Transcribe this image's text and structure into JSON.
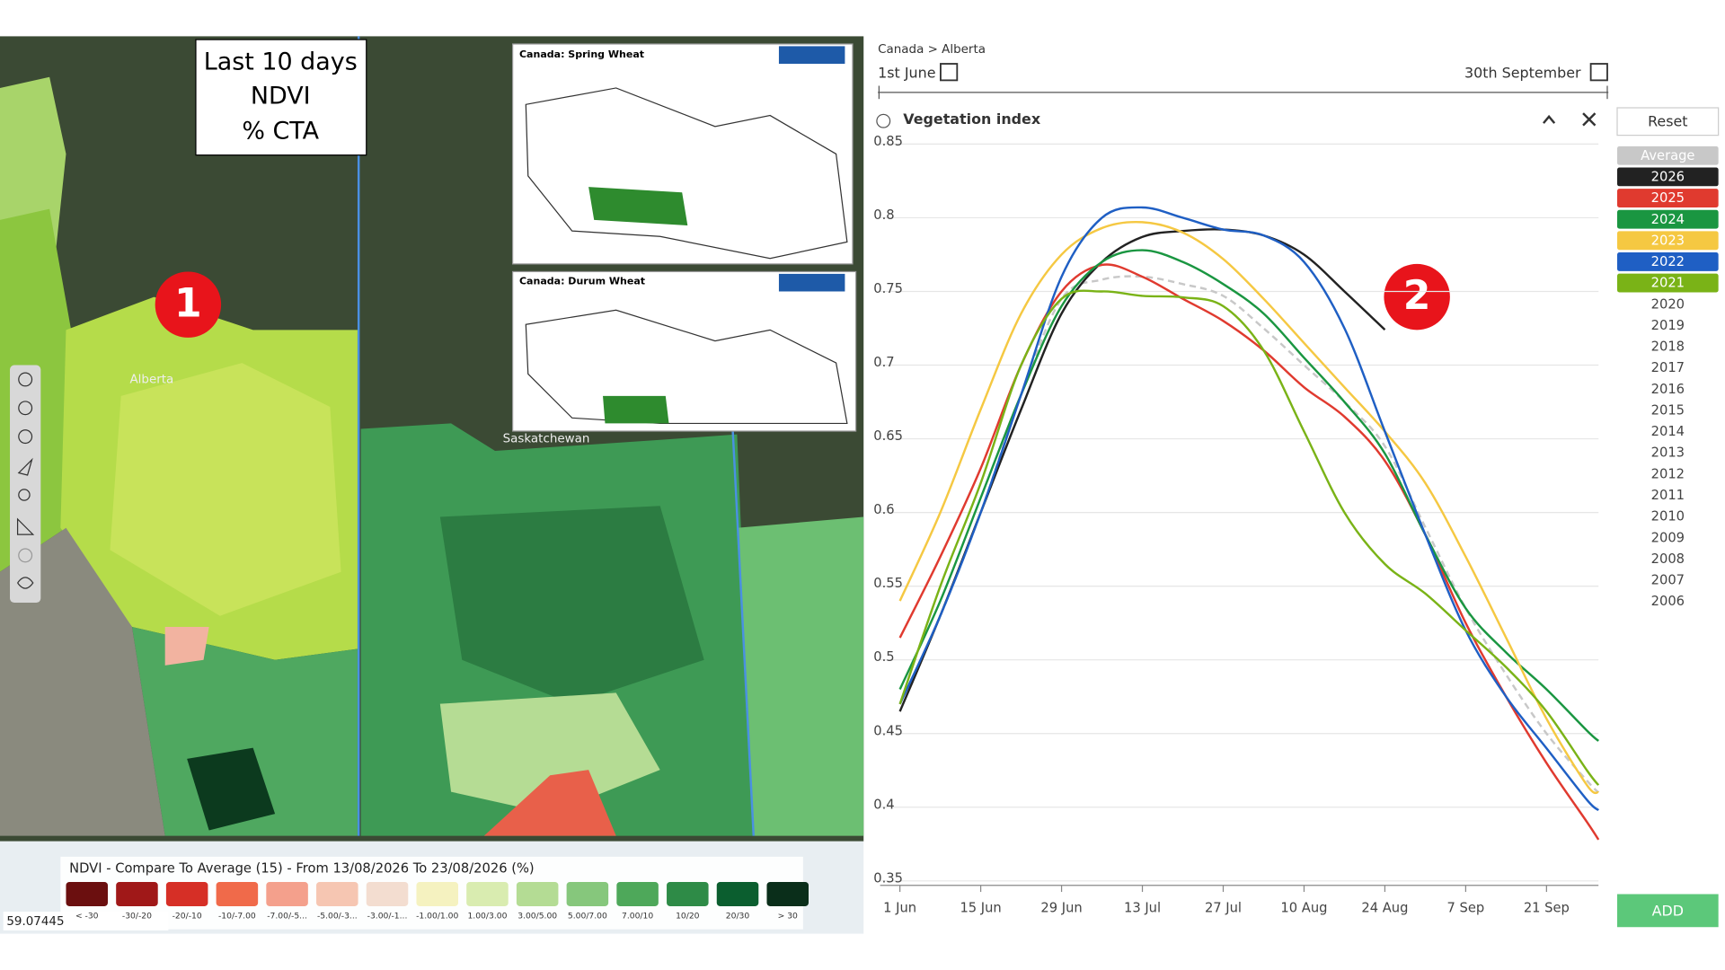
{
  "map": {
    "overlay": [
      "Last 10 days",
      "NDVI",
      "% CTA"
    ],
    "places": [
      "Alberta",
      "Saskatchewan"
    ],
    "insets": [
      "Canada:  Spring Wheat",
      "Canada:  Durum Wheat"
    ],
    "annotation": "1",
    "coordinate": "59.07445",
    "legend": {
      "title": "NDVI - Compare To Average (15) - From 13/08/2026 To 23/08/2026 (%)",
      "labels": [
        "< -30",
        "-30/-20",
        "-20/-10",
        "-10/-7.00",
        "-7.00/-5...",
        "-5.00/-3...",
        "-3.00/-1...",
        "-1.00/1.00",
        "1.00/3.00",
        "3.00/5.00",
        "5.00/7.00",
        "7.00/10",
        "10/20",
        "20/30",
        "> 30"
      ],
      "colors": [
        "#6b0f0f",
        "#a01818",
        "#d62f26",
        "#f06a4a",
        "#f4a08c",
        "#f6c6b2",
        "#f3ddd0",
        "#f5f2c0",
        "#d9ecb0",
        "#b4dc94",
        "#86c77c",
        "#4ea85a",
        "#2e8b47",
        "#0b5e2f",
        "#0a2e1a"
      ]
    }
  },
  "panel": {
    "breadcrumb": "Canada > Alberta",
    "start": "1st June",
    "end": "30th September",
    "reset": "Reset",
    "add": "ADD",
    "annotation": "2",
    "other_years": [
      "2020",
      "2019",
      "2018",
      "2017",
      "2016",
      "2015",
      "2014",
      "2013",
      "2012",
      "2011",
      "2010",
      "2009",
      "2008",
      "2007",
      "2006"
    ]
  },
  "chart_data": {
    "type": "line",
    "title": "Vegetation index",
    "x": [
      0,
      7,
      14,
      21,
      28,
      35,
      42,
      49,
      56,
      63,
      70,
      77,
      84,
      91,
      98,
      105,
      112,
      119,
      121
    ],
    "xlim": [
      0,
      121
    ],
    "xticks": [
      {
        "value": 0,
        "label": "1 Jun"
      },
      {
        "value": 14,
        "label": "15 Jun"
      },
      {
        "value": 28,
        "label": "29 Jun"
      },
      {
        "value": 42,
        "label": "13 Jul"
      },
      {
        "value": 56,
        "label": "27 Jul"
      },
      {
        "value": 70,
        "label": "10 Aug"
      },
      {
        "value": 84,
        "label": "24 Aug"
      },
      {
        "value": 98,
        "label": "7 Sep"
      },
      {
        "value": 112,
        "label": "21 Sep"
      }
    ],
    "ylim": [
      0.35,
      0.85
    ],
    "yticks": [
      0.35,
      0.4,
      0.45,
      0.5,
      0.55,
      0.6,
      0.65,
      0.7,
      0.75,
      0.8,
      0.85
    ],
    "grid": true,
    "series": [
      {
        "name": "Average",
        "color": "#c8c8c8",
        "dashed": true,
        "values": [
          0.47,
          0.53,
          0.6,
          0.68,
          0.745,
          0.758,
          0.76,
          0.755,
          0.747,
          0.725,
          0.7,
          0.675,
          0.645,
          0.59,
          0.535,
          0.49,
          0.45,
          0.418,
          0.41
        ]
      },
      {
        "name": "2026",
        "color": "#222222",
        "values": [
          0.465,
          0.53,
          0.6,
          0.67,
          0.735,
          0.77,
          0.787,
          0.791,
          0.792,
          0.788,
          0.775,
          0.75,
          0.724,
          null,
          null,
          null,
          null,
          null,
          null
        ]
      },
      {
        "name": "2025",
        "color": "#e03a2f",
        "values": [
          0.515,
          0.57,
          0.63,
          0.7,
          0.75,
          0.768,
          0.76,
          0.745,
          0.73,
          0.71,
          0.685,
          0.665,
          0.635,
          0.585,
          0.525,
          0.475,
          0.43,
          0.39,
          0.378
        ]
      },
      {
        "name": "2024",
        "color": "#1a9641",
        "values": [
          0.48,
          0.54,
          0.61,
          0.68,
          0.74,
          0.77,
          0.778,
          0.77,
          0.755,
          0.735,
          0.705,
          0.675,
          0.64,
          0.585,
          0.535,
          0.505,
          0.48,
          0.452,
          0.445
        ]
      },
      {
        "name": "2023",
        "color": "#f5c842",
        "values": [
          0.54,
          0.6,
          0.67,
          0.735,
          0.775,
          0.793,
          0.797,
          0.79,
          0.772,
          0.745,
          0.715,
          0.685,
          0.655,
          0.62,
          0.57,
          0.515,
          0.46,
          0.415,
          0.41
        ]
      },
      {
        "name": "2022",
        "color": "#1f5fc4",
        "values": [
          0.47,
          0.53,
          0.6,
          0.68,
          0.76,
          0.8,
          0.807,
          0.8,
          0.792,
          0.788,
          0.77,
          0.725,
          0.655,
          0.585,
          0.52,
          0.475,
          0.44,
          0.405,
          0.398
        ]
      },
      {
        "name": "2021",
        "color": "#7ab317",
        "values": [
          0.47,
          0.55,
          0.62,
          0.7,
          0.745,
          0.75,
          0.747,
          0.746,
          0.74,
          0.71,
          0.655,
          0.6,
          0.565,
          0.545,
          0.52,
          0.495,
          0.465,
          0.425,
          0.415
        ]
      }
    ]
  }
}
